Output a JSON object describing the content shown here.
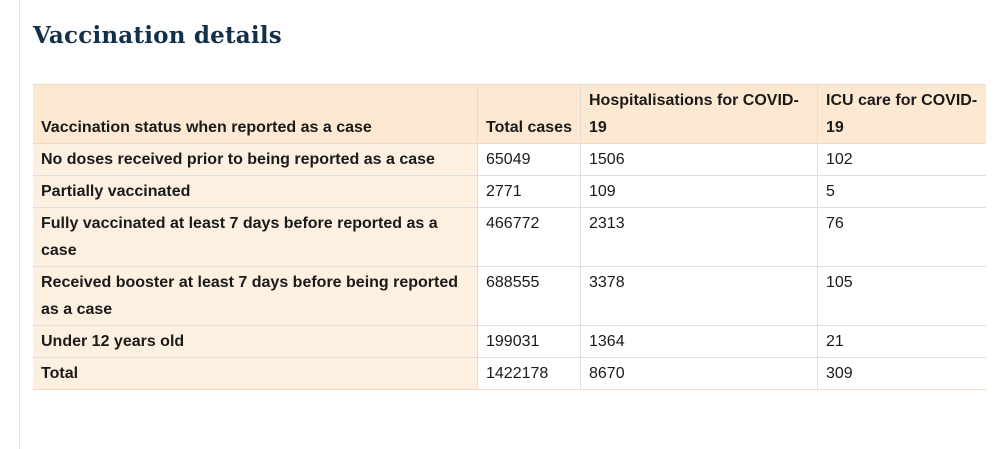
{
  "page": {
    "heading": "Vaccination details"
  },
  "table": {
    "headers": {
      "status": "Vaccination status when reported as a case",
      "total_cases": "Total cases",
      "hospitalisations": "Hospitalisations for COVID-19",
      "icu": "ICU care for COVID-19"
    },
    "rows": [
      {
        "status": "No doses received prior to being reported as a case",
        "total_cases": "65049",
        "hospitalisations": "1506",
        "icu": "102"
      },
      {
        "status": "Partially vaccinated",
        "total_cases": "2771",
        "hospitalisations": "109",
        "icu": "5"
      },
      {
        "status": "Fully vaccinated at least 7 days before reported as a case",
        "total_cases": "466772",
        "hospitalisations": "2313",
        "icu": "76"
      },
      {
        "status": "Received booster at least 7 days before being reported as a case",
        "total_cases": "688555",
        "hospitalisations": "3378",
        "icu": "105"
      },
      {
        "status": "Under 12 years old",
        "total_cases": "199031",
        "hospitalisations": "1364",
        "icu": "21"
      },
      {
        "status": "Total",
        "total_cases": "1422178",
        "hospitalisations": "8670",
        "icu": "309"
      }
    ]
  },
  "colors": {
    "heading": "#12304a",
    "header_bg": "#fde9d2",
    "row_header_bg": "#fdf0e0"
  }
}
